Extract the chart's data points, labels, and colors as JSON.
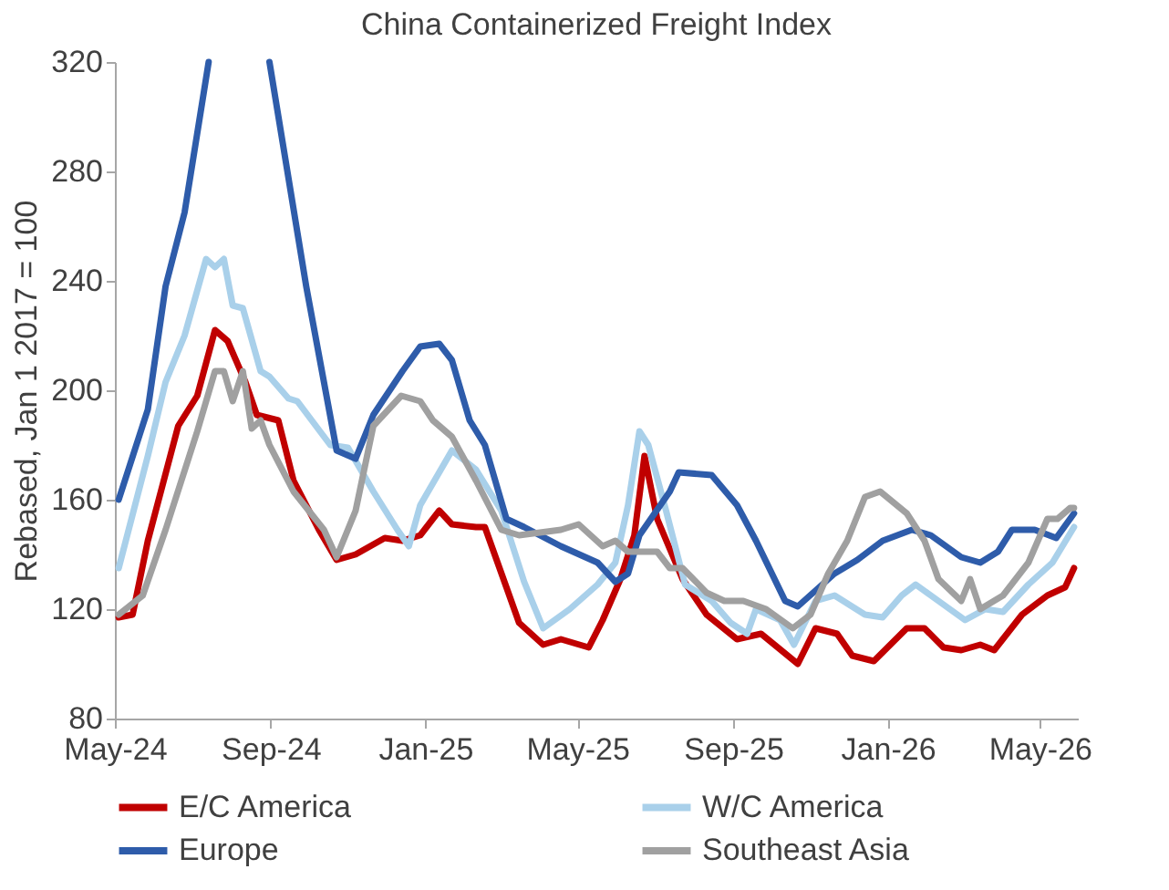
{
  "chart_data": {
    "type": "line",
    "title": "China Containerized Freight Index",
    "ylabel": "Rebased, Jan 1 2017 = 100",
    "xlim": [
      "2024-05-01",
      "2026-05-31"
    ],
    "xticks": [
      {
        "value": "2024-05-01",
        "label": "May-24"
      },
      {
        "value": "2024-09-01",
        "label": "Sep-24"
      },
      {
        "value": "2025-01-01",
        "label": "Jan-25"
      },
      {
        "value": "2025-05-01",
        "label": "May-25"
      },
      {
        "value": "2025-09-01",
        "label": "Sep-25"
      },
      {
        "value": "2026-01-01",
        "label": "Jan-26"
      },
      {
        "value": "2026-05-01",
        "label": "May-26"
      }
    ],
    "ylim": [
      80,
      320
    ],
    "yticks": [
      80,
      120,
      160,
      200,
      240,
      280,
      320
    ],
    "grid": false,
    "legend": "bottom",
    "line_style": "solid",
    "marker": "none",
    "series": [
      {
        "name": "E/C America",
        "color": "#c00000",
        "x": [
          "2024-05-04",
          "2024-05-15",
          "2024-05-27",
          "2024-06-20",
          "2024-07-05",
          "2024-07-19",
          "2024-07-29",
          "2024-08-12",
          "2024-08-21",
          "2024-09-07",
          "2024-09-19",
          "2024-10-09",
          "2024-10-23",
          "2024-11-07",
          "2024-11-30",
          "2024-12-14",
          "2024-12-28",
          "2025-01-12",
          "2025-01-22",
          "2025-02-10",
          "2025-02-17",
          "2025-03-06",
          "2025-03-16",
          "2025-04-04",
          "2025-04-18",
          "2025-05-10",
          "2025-05-21",
          "2025-06-04",
          "2025-06-15",
          "2025-06-23",
          "2025-07-03",
          "2025-07-23",
          "2025-08-11",
          "2025-09-04",
          "2025-09-23",
          "2025-10-22",
          "2025-11-05",
          "2025-11-22",
          "2025-12-04",
          "2025-12-21",
          "2026-01-16",
          "2026-01-30",
          "2026-02-14",
          "2026-02-28",
          "2026-03-15",
          "2026-03-26",
          "2026-04-17",
          "2026-05-07",
          "2026-05-21",
          "2026-05-28"
        ],
        "values": [
          117,
          118,
          145,
          187,
          198,
          222,
          218,
          203,
          191,
          189,
          167,
          149,
          138,
          140,
          146,
          145,
          147,
          156,
          151,
          150,
          150,
          128,
          115,
          107,
          109,
          106,
          116,
          131,
          147,
          176,
          153,
          131,
          118,
          109,
          111,
          100,
          113,
          111,
          103,
          101,
          113,
          113,
          106,
          105,
          107,
          105,
          118,
          125,
          128,
          135
        ]
      },
      {
        "name": "W/C America",
        "color": "#a9d0ea",
        "x": [
          "2024-05-04",
          "2024-05-27",
          "2024-06-10",
          "2024-06-25",
          "2024-07-12",
          "2024-07-19",
          "2024-07-26",
          "2024-08-02",
          "2024-08-10",
          "2024-08-24",
          "2024-08-31",
          "2024-09-15",
          "2024-09-22",
          "2024-10-18",
          "2024-11-01",
          "2024-11-21",
          "2024-12-10",
          "2024-12-19",
          "2024-12-28",
          "2025-01-22",
          "2025-02-10",
          "2025-03-02",
          "2025-03-20",
          "2025-04-04",
          "2025-04-25",
          "2025-05-17",
          "2025-05-31",
          "2025-06-10",
          "2025-06-19",
          "2025-06-26",
          "2025-07-10",
          "2025-07-25",
          "2025-08-15",
          "2025-08-30",
          "2025-09-12",
          "2025-09-19",
          "2025-10-08",
          "2025-10-19",
          "2025-11-05",
          "2025-11-20",
          "2025-12-14",
          "2025-12-28",
          "2026-01-12",
          "2026-01-23",
          "2026-02-10",
          "2026-03-03",
          "2026-03-19",
          "2026-04-02",
          "2026-04-22",
          "2026-05-11",
          "2026-05-28"
        ],
        "values": [
          135,
          176,
          203,
          220,
          248,
          245,
          248,
          231,
          230,
          207,
          205,
          197,
          196,
          180,
          179,
          163,
          149,
          143,
          158,
          178,
          171,
          156,
          130,
          113,
          120,
          129,
          137,
          158,
          185,
          180,
          156,
          129,
          123,
          115,
          111,
          120,
          116,
          107,
          123,
          125,
          118,
          117,
          125,
          129,
          123,
          116,
          120,
          119,
          129,
          137,
          150
        ]
      },
      {
        "name": "Europe",
        "color": "#2e5caa",
        "x": [
          "2024-05-04",
          "2024-05-27",
          "2024-06-10",
          "2024-06-25",
          "2024-07-14",
          "2024-08-01",
          "2024-08-31",
          "2024-09-29",
          "2024-10-23",
          "2024-11-07",
          "2024-11-21",
          "2024-12-14",
          "2024-12-28",
          "2025-01-12",
          "2025-01-22",
          "2025-02-05",
          "2025-02-17",
          "2025-03-06",
          "2025-03-20",
          "2025-04-18",
          "2025-05-17",
          "2025-05-31",
          "2025-06-10",
          "2025-06-19",
          "2025-07-13",
          "2025-07-20",
          "2025-08-15",
          "2025-09-04",
          "2025-09-19",
          "2025-10-12",
          "2025-10-22",
          "2025-11-20",
          "2025-12-08",
          "2025-12-28",
          "2026-01-20",
          "2026-02-04",
          "2026-02-28",
          "2026-03-15",
          "2026-03-29",
          "2026-04-09",
          "2026-04-27",
          "2026-05-14",
          "2026-05-28"
        ],
        "values": [
          160,
          193,
          238,
          265,
          320,
          null,
          320,
          238,
          178,
          175,
          191,
          207,
          216,
          217,
          211,
          189,
          180,
          153,
          150,
          143,
          137,
          130,
          133,
          147,
          163,
          170,
          169,
          158,
          145,
          123,
          121,
          133,
          138,
          145,
          149,
          147,
          139,
          137,
          141,
          149,
          149,
          146,
          155
        ]
      },
      {
        "name": "Southeast Asia",
        "color": "#a0a0a0",
        "x": [
          "2024-05-04",
          "2024-05-23",
          "2024-06-10",
          "2024-07-05",
          "2024-07-19",
          "2024-07-26",
          "2024-08-02",
          "2024-08-10",
          "2024-08-17",
          "2024-08-24",
          "2024-08-31",
          "2024-09-19",
          "2024-10-13",
          "2024-10-23",
          "2024-11-07",
          "2024-11-21",
          "2024-12-13",
          "2024-12-28",
          "2025-01-07",
          "2025-01-22",
          "2025-02-10",
          "2025-03-02",
          "2025-03-16",
          "2025-04-18",
          "2025-05-02",
          "2025-05-21",
          "2025-05-31",
          "2025-06-10",
          "2025-07-03",
          "2025-07-13",
          "2025-07-23",
          "2025-08-11",
          "2025-08-25",
          "2025-09-09",
          "2025-09-27",
          "2025-10-18",
          "2025-11-01",
          "2025-11-15",
          "2025-11-30",
          "2025-12-14",
          "2025-12-26",
          "2026-01-16",
          "2026-01-30",
          "2026-02-10",
          "2026-02-28",
          "2026-03-07",
          "2026-03-15",
          "2026-04-02",
          "2026-04-22",
          "2026-05-07",
          "2026-05-15",
          "2026-05-25",
          "2026-05-28"
        ],
        "values": [
          118,
          125,
          149,
          185,
          207,
          207,
          196,
          207,
          186,
          189,
          180,
          163,
          149,
          139,
          156,
          187,
          198,
          196,
          189,
          183,
          167,
          149,
          147,
          149,
          151,
          143,
          145,
          141,
          141,
          135,
          135,
          126,
          123,
          123,
          120,
          113,
          118,
          133,
          145,
          161,
          163,
          155,
          145,
          131,
          123,
          131,
          120,
          125,
          137,
          153,
          153,
          157,
          157
        ]
      }
    ]
  }
}
